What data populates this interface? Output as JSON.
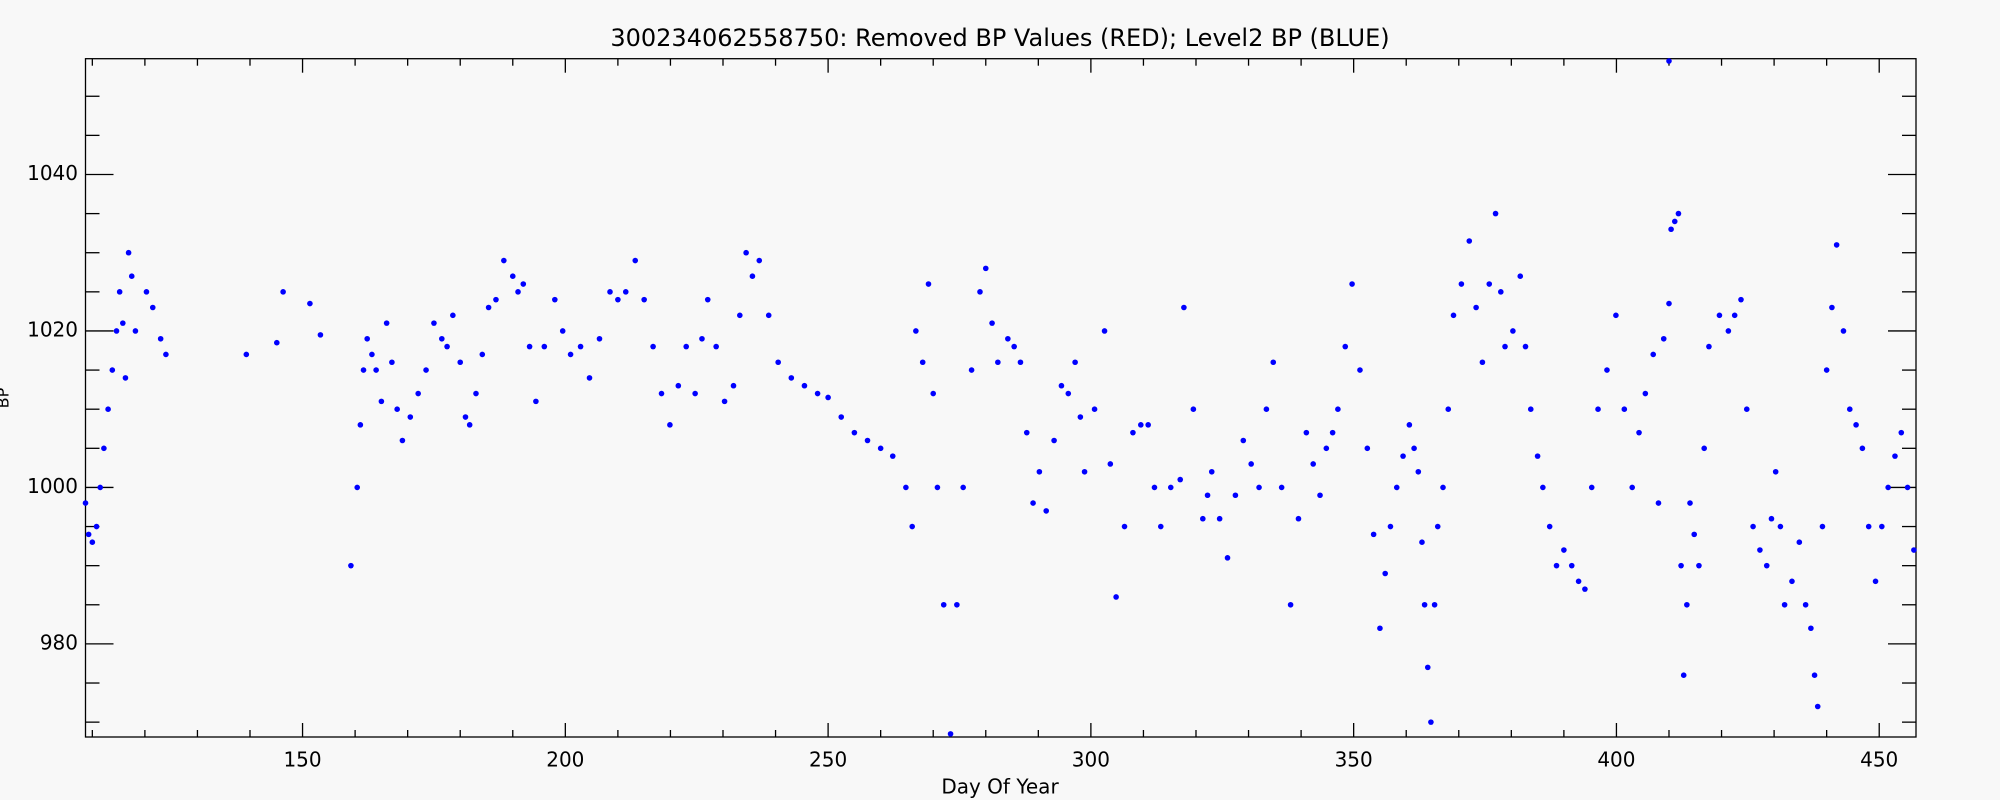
{
  "chart_data": {
    "type": "scatter",
    "title": "300234062558750: Removed BP Values (RED); Level2 BP (BLUE)",
    "x_label": "Day Of Year",
    "y_label": "BP",
    "color": "#0000ff",
    "xlim": [
      108.7,
      457
    ],
    "ylim": [
      968.1,
      1054.8
    ],
    "xticks": [
      150,
      200,
      250,
      300,
      350,
      400,
      450
    ],
    "yticks": [
      980,
      1000,
      1020,
      1040
    ],
    "xminorticks": [
      110,
      120,
      130,
      140,
      160,
      170,
      180,
      190,
      210,
      220,
      230,
      240,
      260,
      270,
      280,
      290,
      310,
      320,
      330,
      340,
      360,
      370,
      380,
      390,
      410,
      420,
      430,
      440
    ],
    "yminorticks": [
      970,
      975,
      985,
      990,
      995,
      1005,
      1010,
      1015,
      1025,
      1030,
      1035,
      1045,
      1050
    ],
    "x": [
      108.7,
      109.3,
      110,
      110.8,
      111.5,
      112.2,
      113,
      113.8,
      114.6,
      115.2,
      115.8,
      116.3,
      116.9,
      117.5,
      118.2,
      120.3,
      121.5,
      123,
      124,
      139.3,
      145.1,
      146.3,
      151.4,
      153.4,
      159.2,
      160.4,
      161,
      161.6,
      162.3,
      163.2,
      164,
      165,
      166,
      167,
      168,
      169,
      170.5,
      172,
      173.5,
      175,
      176.5,
      177.5,
      178.6,
      180,
      181,
      181.8,
      183,
      184.2,
      185.4,
      186.8,
      188.3,
      190,
      191,
      192,
      193.2,
      194.4,
      196,
      198,
      199.5,
      201,
      202.9,
      204.6,
      206.5,
      208.5,
      210,
      211.5,
      213.3,
      215,
      216.7,
      218.3,
      219.9,
      221.5,
      223,
      224.7,
      226,
      227.1,
      228.7,
      230.3,
      232,
      233.2,
      234.4,
      235.6,
      236.9,
      238.7,
      240.5,
      243,
      245.5,
      248,
      250,
      252.5,
      255,
      257.5,
      260,
      262.3,
      264.8,
      266,
      266.7,
      268,
      269.1,
      270,
      270.8,
      272,
      273.3,
      274.5,
      275.7,
      277.3,
      278.9,
      280,
      281.2,
      282.3,
      284.2,
      285.4,
      286.6,
      287.8,
      289,
      290.2,
      291.5,
      293,
      294.4,
      295.7,
      297,
      298,
      298.8,
      300.7,
      302.6,
      303.7,
      304.8,
      306.4,
      308,
      309.5,
      310.9,
      312.1,
      313.3,
      315.2,
      317,
      317.7,
      319.5,
      321.3,
      322.2,
      323,
      324.5,
      326,
      327.5,
      329,
      330.5,
      332,
      333.4,
      334.7,
      336.3,
      338,
      339.5,
      341,
      342.3,
      343.6,
      344.8,
      346,
      347,
      348.4,
      349.7,
      351.2,
      352.6,
      353.8,
      355,
      356,
      357,
      358.2,
      359.4,
      360.6,
      361.5,
      362.3,
      363,
      363.5,
      364.1,
      364.7,
      365.4,
      366,
      367,
      368,
      369,
      370.5,
      372,
      373.3,
      374.5,
      375.8,
      377,
      378,
      378.8,
      380.3,
      381.7,
      382.7,
      383.7,
      385,
      386,
      387.3,
      388.6,
      390,
      391.5,
      392.8,
      394,
      395.3,
      396.5,
      398.2,
      399.9,
      401.5,
      403,
      404.3,
      405.5,
      407,
      408,
      409,
      410,
      410,
      410.4,
      411.1,
      411.8,
      412.3,
      412.8,
      413.4,
      414,
      414.8,
      415.7,
      416.7,
      417.6,
      419.6,
      421.3,
      422.5,
      423.7,
      424.8,
      426,
      427.3,
      428.6,
      429.5,
      430.3,
      431.2,
      432,
      433.4,
      434.8,
      436,
      437,
      437.7,
      438.3,
      439.2,
      440,
      441,
      441.9,
      443.2,
      444.4,
      445.6,
      446.8,
      448,
      449.3,
      450.5,
      451.7,
      453,
      454.2,
      455.4,
      456.6
    ],
    "values": [
      998,
      994,
      993,
      995,
      1000,
      1005,
      1010,
      1015,
      1020,
      1025,
      1021,
      1014,
      1030,
      1027,
      1020,
      1025,
      1023,
      1019,
      1017,
      1017,
      1018.5,
      1025,
      1023.5,
      1019.5,
      990,
      1000,
      1008,
      1015,
      1019,
      1017,
      1015,
      1011,
      1021,
      1016,
      1010,
      1006,
      1009,
      1012,
      1015,
      1021,
      1019,
      1018,
      1022,
      1016,
      1009,
      1008,
      1012,
      1017,
      1023,
      1024,
      1029,
      1027,
      1025,
      1026,
      1018,
      1011,
      1018,
      1024,
      1020,
      1017,
      1018,
      1014,
      1019,
      1025,
      1024,
      1025,
      1029,
      1024,
      1018,
      1012,
      1008,
      1013,
      1018,
      1012,
      1019,
      1024,
      1018,
      1011,
      1013,
      1022,
      1030,
      1027,
      1029,
      1022,
      1016,
      1014,
      1013,
      1012,
      1011.5,
      1009,
      1007,
      1006,
      1005,
      1004,
      1000,
      995,
      1020,
      1016,
      1026,
      1012,
      1000,
      985,
      968.5,
      985,
      1000,
      1015,
      1025,
      1028,
      1021,
      1016,
      1019,
      1018,
      1016,
      1007,
      998,
      1002,
      997,
      1006,
      1013,
      1012,
      1016,
      1009,
      1002,
      1010,
      1020,
      1003,
      986,
      995,
      1007,
      1008,
      1008,
      1000,
      995,
      1000,
      1001,
      1023,
      1010,
      996,
      999,
      1002,
      996,
      991,
      999,
      1006,
      1003,
      1000,
      1010,
      1016,
      1000,
      985,
      996,
      1007,
      1003,
      999,
      1005,
      1007,
      1010,
      1018,
      1026,
      1015,
      1005,
      994,
      982,
      989,
      995,
      1000,
      1004,
      1008,
      1005,
      1002,
      993,
      985,
      977,
      970,
      985,
      995,
      1000,
      1010,
      1022,
      1026,
      1031.5,
      1023,
      1016,
      1026,
      1035,
      1025,
      1018,
      1020,
      1027,
      1018,
      1010,
      1004,
      1000,
      995,
      990,
      992,
      990,
      988,
      987,
      1000,
      1010,
      1015,
      1022,
      1010,
      1000,
      1007,
      1012,
      1017,
      998,
      1019,
      1023.5,
      1054.5,
      1033,
      1034,
      1035,
      990,
      976,
      985,
      998,
      994,
      990,
      1005,
      1018,
      1022,
      1020,
      1022,
      1024,
      1010,
      995,
      992,
      990,
      996,
      1002,
      995,
      985,
      988,
      993,
      985,
      982,
      976,
      972,
      995,
      1015,
      1023,
      1031,
      1020,
      1010,
      1008,
      1005,
      995,
      988,
      995,
      1000,
      1004,
      1007,
      1000,
      992
    ]
  }
}
